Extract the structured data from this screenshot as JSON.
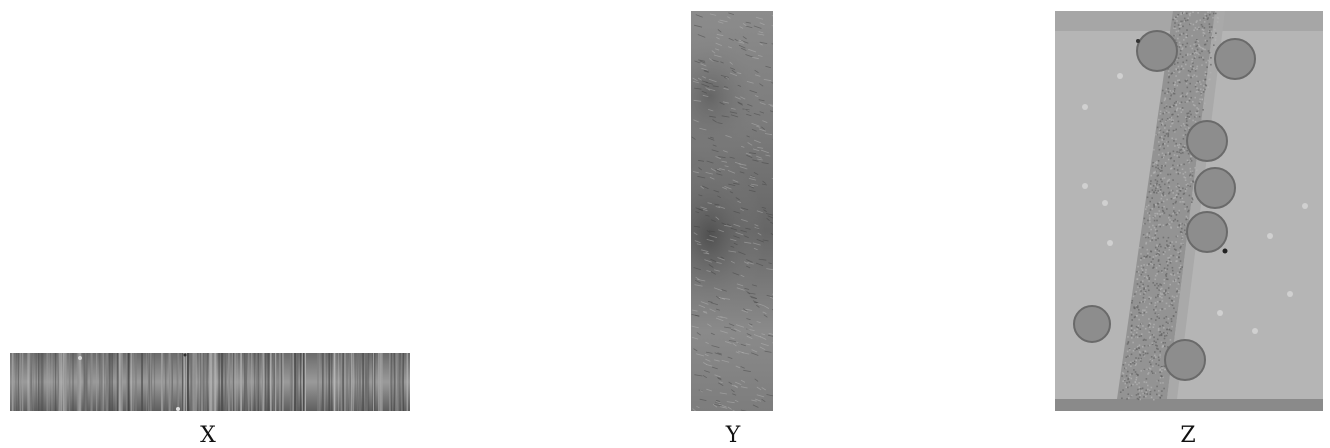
{
  "figure": {
    "panels": [
      {
        "id": "x",
        "label": "X"
      },
      {
        "id": "y",
        "label": "Y"
      },
      {
        "id": "z",
        "label": "Z"
      }
    ]
  }
}
